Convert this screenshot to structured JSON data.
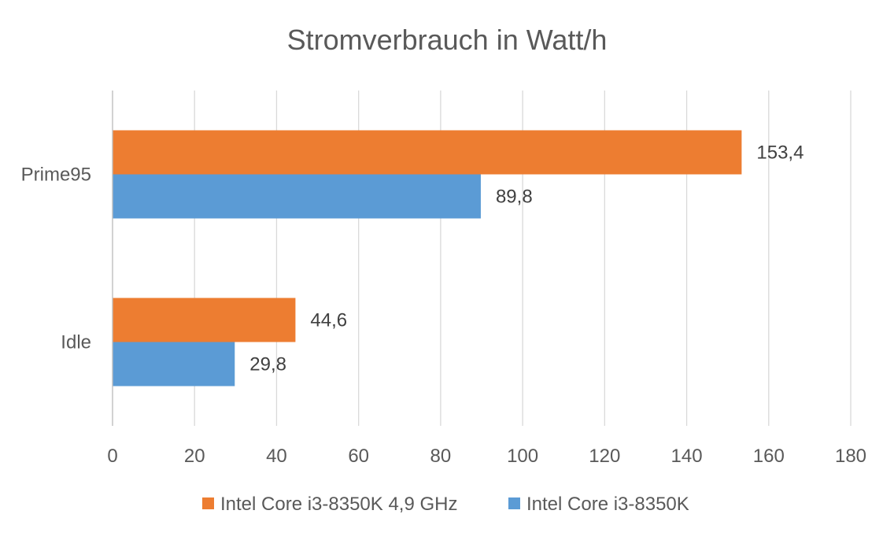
{
  "chart_data": {
    "type": "bar",
    "orientation": "horizontal",
    "title": "Stromverbrauch in Watt/h",
    "xlabel": "",
    "ylabel": "",
    "xlim": [
      0,
      180
    ],
    "xticks": [
      0,
      20,
      40,
      60,
      80,
      100,
      120,
      140,
      160,
      180
    ],
    "xtick_labels": [
      "0",
      "20",
      "40",
      "60",
      "80",
      "100",
      "120",
      "140",
      "160",
      "180"
    ],
    "grid": true,
    "legend_position": "bottom",
    "categories": [
      "Prime95",
      "Idle"
    ],
    "series": [
      {
        "name": "Intel Core i3-8350K 4,9 GHz",
        "color": "#ED7D31",
        "values": [
          153.4,
          44.6
        ],
        "labels": [
          "153,4",
          "44,6"
        ]
      },
      {
        "name": "Intel Core i3-8350K",
        "color": "#5B9BD5",
        "values": [
          89.8,
          29.8
        ],
        "labels": [
          "89,8",
          "29,8"
        ]
      }
    ]
  }
}
